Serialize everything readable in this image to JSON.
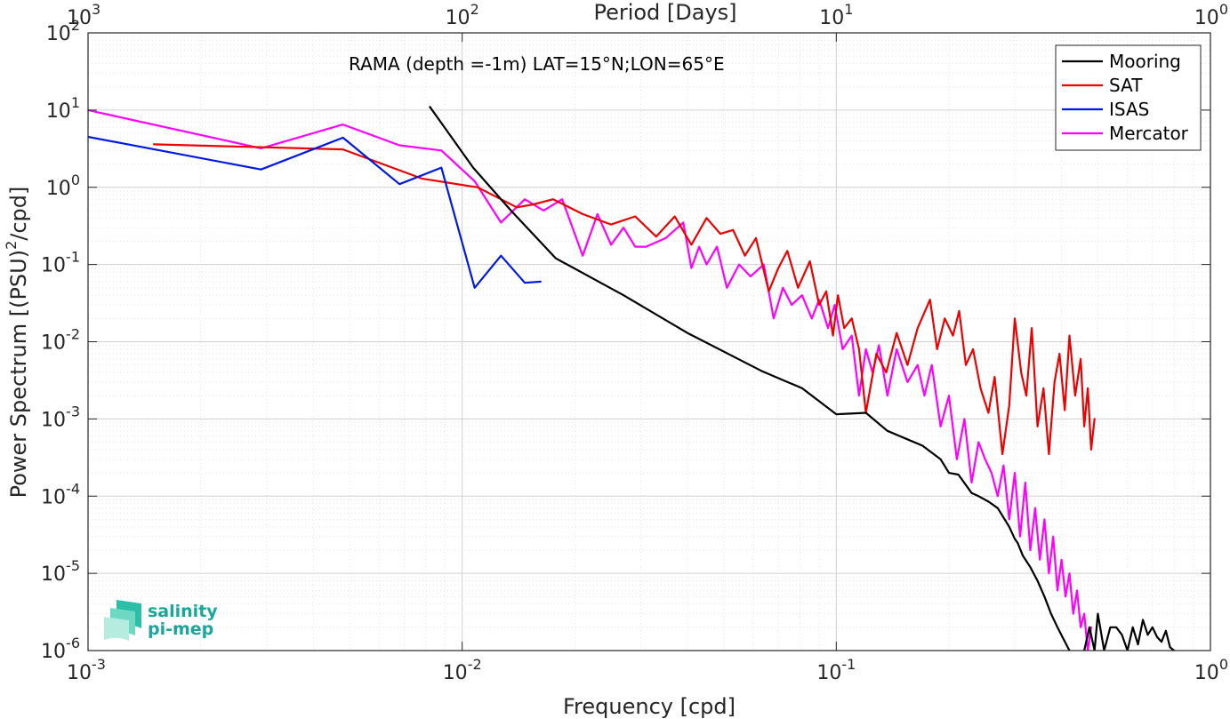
{
  "chart_data": {
    "type": "line",
    "annotation": "RAMA (depth =-1m) LAT=15°N;LON=65°E",
    "xlabel": "Frequency [cpd]",
    "ylabel_main": "Power Spectrum [(PSU)",
    "ylabel_sup": "2",
    "ylabel_tail": "/cpd]",
    "top_xlabel": "Period [Days]",
    "x_scale": "log",
    "y_scale": "log",
    "xlim": [
      0.001,
      1
    ],
    "ylim": [
      1e-06,
      100
    ],
    "grid": true,
    "legend_position": "top-right",
    "x_ticks": [
      {
        "value": 0.001,
        "base": "10",
        "exp": "-3"
      },
      {
        "value": 0.01,
        "base": "10",
        "exp": "-2"
      },
      {
        "value": 0.1,
        "base": "10",
        "exp": "-1"
      },
      {
        "value": 1,
        "base": "10",
        "exp": "0"
      }
    ],
    "top_ticks": [
      {
        "value": 0.001,
        "base": "10",
        "exp": "3"
      },
      {
        "value": 0.01,
        "base": "10",
        "exp": "2"
      },
      {
        "value": 0.1,
        "base": "10",
        "exp": "1"
      },
      {
        "value": 1,
        "base": "10",
        "exp": "0"
      }
    ],
    "y_ticks": [
      {
        "value": 1e-06,
        "base": "10",
        "exp": "-6"
      },
      {
        "value": 1e-05,
        "base": "10",
        "exp": "-5"
      },
      {
        "value": 0.0001,
        "base": "10",
        "exp": "-4"
      },
      {
        "value": 0.001,
        "base": "10",
        "exp": "-3"
      },
      {
        "value": 0.01,
        "base": "10",
        "exp": "-2"
      },
      {
        "value": 0.1,
        "base": "10",
        "exp": "-1"
      },
      {
        "value": 1,
        "base": "10",
        "exp": "0"
      },
      {
        "value": 10,
        "base": "10",
        "exp": "1"
      },
      {
        "value": 100,
        "base": "10",
        "exp": "2"
      }
    ],
    "series": [
      {
        "name": "Mooring",
        "color": "#000000",
        "x": [
          0.0082,
          0.0107,
          0.0135,
          0.0178,
          0.027,
          0.04,
          0.063,
          0.081,
          0.1,
          0.12,
          0.137,
          0.17,
          0.19,
          0.2,
          0.212,
          0.23,
          0.24,
          0.255,
          0.27,
          0.282,
          0.29,
          0.3,
          0.305,
          0.315,
          0.33,
          0.345,
          0.36,
          0.375,
          0.39,
          0.405,
          0.42,
          0.43,
          0.445,
          0.46,
          0.475,
          0.49,
          0.5,
          0.52,
          0.54,
          0.56,
          0.58,
          0.6,
          0.62,
          0.64,
          0.66,
          0.68,
          0.7,
          0.72,
          0.74,
          0.76,
          0.78,
          0.8
        ],
        "y": [
          11,
          1.8,
          0.5,
          0.12,
          0.04,
          0.013,
          0.0042,
          0.0025,
          0.00115,
          0.0012,
          0.0007,
          0.00045,
          0.0003,
          0.0002,
          0.00019,
          0.00011,
          0.0001,
          8.5e-05,
          7e-05,
          5e-05,
          4e-05,
          2.8e-05,
          2.5e-05,
          1.7e-05,
          1.2e-05,
          8e-06,
          5e-06,
          3e-06,
          2e-06,
          1.4e-06,
          1e-06,
          6e-07,
          8e-07,
          1e-06,
          2e-06,
          1e-06,
          3e-06,
          1e-06,
          2e-06,
          2e-06,
          1.6e-06,
          1e-06,
          2e-06,
          1.2e-06,
          2.5e-06,
          1.6e-06,
          2e-06,
          1.5e-06,
          1.3e-06,
          1.8e-06,
          1.1e-06,
          1e-06
        ]
      },
      {
        "name": "SAT",
        "color": "#ee0000",
        "x": [
          0.0015,
          0.0048,
          0.0078,
          0.011,
          0.014,
          0.0155,
          0.0175,
          0.021,
          0.025,
          0.029,
          0.033,
          0.037,
          0.041,
          0.045,
          0.049,
          0.053,
          0.057,
          0.061,
          0.066,
          0.07,
          0.074,
          0.079,
          0.085,
          0.09,
          0.094,
          0.098,
          0.101,
          0.105,
          0.11,
          0.115,
          0.12,
          0.128,
          0.136,
          0.145,
          0.155,
          0.165,
          0.178,
          0.186,
          0.195,
          0.205,
          0.213,
          0.222,
          0.232,
          0.243,
          0.255,
          0.265,
          0.278,
          0.29,
          0.3,
          0.312,
          0.322,
          0.333,
          0.345,
          0.358,
          0.37,
          0.383,
          0.395,
          0.408,
          0.42,
          0.435,
          0.45,
          0.46,
          0.47,
          0.48,
          0.49
        ],
        "y": [
          3.6,
          3.1,
          1.3,
          1.0,
          0.55,
          0.6,
          0.7,
          0.45,
          0.33,
          0.42,
          0.23,
          0.42,
          0.18,
          0.4,
          0.25,
          0.28,
          0.13,
          0.22,
          0.045,
          0.09,
          0.15,
          0.05,
          0.11,
          0.03,
          0.045,
          0.012,
          0.04,
          0.015,
          0.02,
          0.008,
          0.0012,
          0.007,
          0.004,
          0.013,
          0.005,
          0.015,
          0.035,
          0.008,
          0.02,
          0.012,
          0.025,
          0.005,
          0.008,
          0.0025,
          0.0012,
          0.0035,
          0.00035,
          0.0015,
          0.02,
          0.004,
          0.002,
          0.015,
          0.0008,
          0.0025,
          0.00035,
          0.003,
          0.007,
          0.0013,
          0.012,
          0.002,
          0.006,
          0.0008,
          0.0025,
          0.0004,
          0.001
        ]
      },
      {
        "name": "ISAS",
        "color": "#0018e6",
        "x": [
          0.001,
          0.0029,
          0.0048,
          0.0068,
          0.0088,
          0.0108,
          0.0127,
          0.0147,
          0.0162
        ],
        "y": [
          4.5,
          1.7,
          4.4,
          1.1,
          1.8,
          0.05,
          0.13,
          0.058,
          0.06
        ]
      },
      {
        "name": "Mercator",
        "color": "#ff00ff",
        "x": [
          0.001,
          0.0029,
          0.0048,
          0.0068,
          0.0088,
          0.0108,
          0.0127,
          0.0147,
          0.0165,
          0.0185,
          0.021,
          0.023,
          0.025,
          0.027,
          0.029,
          0.031,
          0.035,
          0.039,
          0.041,
          0.043,
          0.045,
          0.048,
          0.051,
          0.055,
          0.059,
          0.064,
          0.068,
          0.072,
          0.076,
          0.081,
          0.086,
          0.09,
          0.095,
          0.099,
          0.104,
          0.11,
          0.115,
          0.12,
          0.125,
          0.13,
          0.137,
          0.145,
          0.155,
          0.165,
          0.172,
          0.18,
          0.19,
          0.2,
          0.21,
          0.22,
          0.23,
          0.24,
          0.25,
          0.26,
          0.27,
          0.28,
          0.29,
          0.3,
          0.31,
          0.32,
          0.33,
          0.34,
          0.35,
          0.36,
          0.37,
          0.38,
          0.39,
          0.4,
          0.41,
          0.42,
          0.43,
          0.44,
          0.45,
          0.46,
          0.47,
          0.48
        ],
        "y": [
          10,
          3.2,
          6.5,
          3.5,
          3.0,
          1.2,
          0.35,
          0.7,
          0.5,
          0.7,
          0.13,
          0.45,
          0.18,
          0.3,
          0.17,
          0.17,
          0.22,
          0.35,
          0.09,
          0.17,
          0.1,
          0.17,
          0.05,
          0.1,
          0.07,
          0.1,
          0.02,
          0.05,
          0.03,
          0.04,
          0.02,
          0.035,
          0.015,
          0.03,
          0.008,
          0.012,
          0.002,
          0.008,
          0.004,
          0.009,
          0.002,
          0.008,
          0.003,
          0.005,
          0.002,
          0.005,
          0.0008,
          0.002,
          0.0003,
          0.001,
          0.00015,
          0.0005,
          0.0003,
          0.0002,
          0.0001,
          0.00025,
          5e-05,
          0.0002,
          3e-05,
          0.00015,
          2e-05,
          7e-05,
          1.5e-05,
          5e-05,
          1e-05,
          3e-05,
          6e-06,
          1.5e-05,
          5e-06,
          1e-05,
          3e-06,
          6e-06,
          2e-06,
          3e-06,
          1e-06,
          2e-06
        ]
      }
    ]
  },
  "logo": {
    "line1": "salinity",
    "line2": "pi-mep",
    "color": "#1aa79a"
  }
}
